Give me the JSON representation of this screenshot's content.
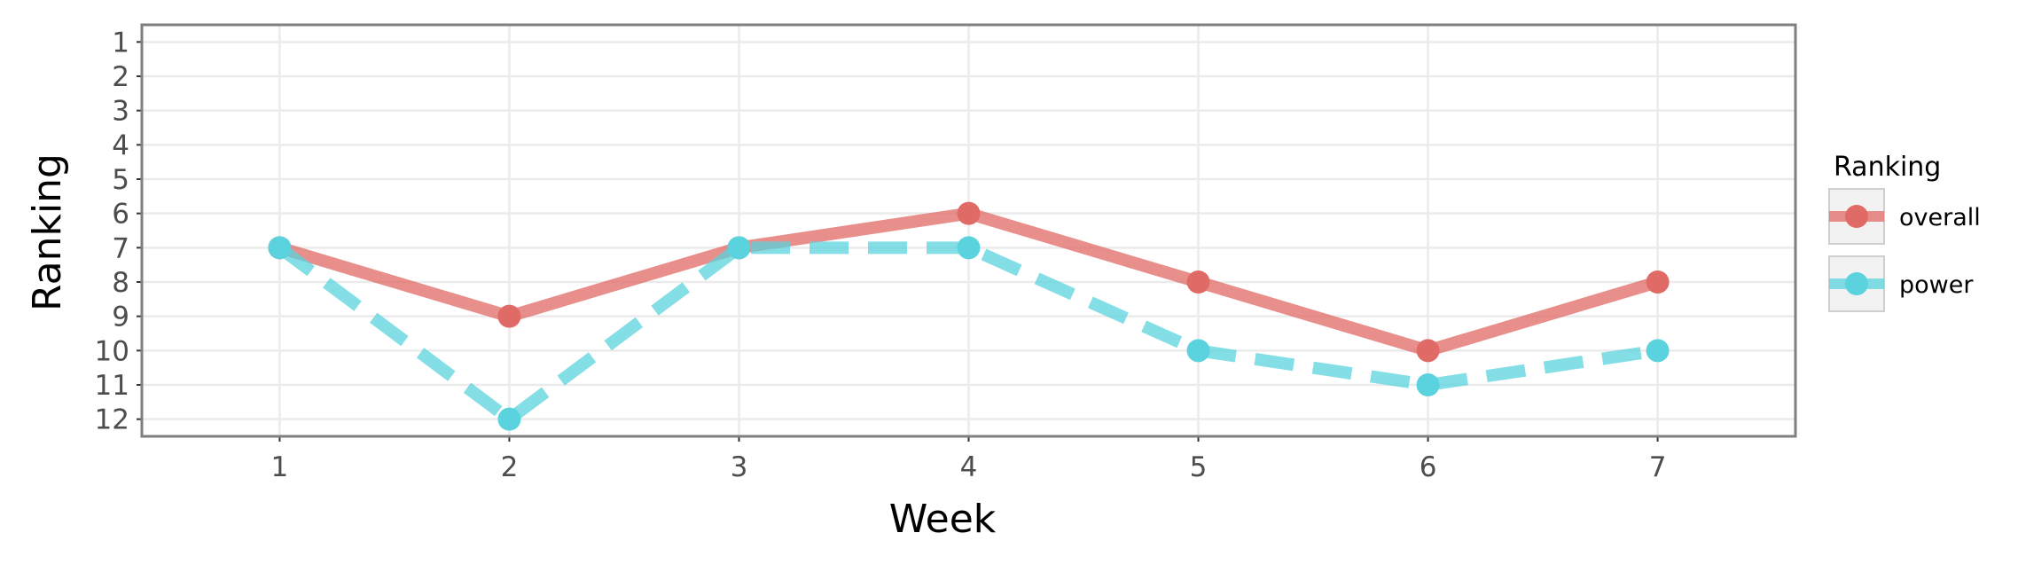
{
  "chart_data": {
    "type": "line",
    "xlabel": "Week",
    "ylabel": "Ranking",
    "x": [
      1,
      2,
      3,
      4,
      5,
      6,
      7
    ],
    "xlim": [
      0.4,
      7.6
    ],
    "ylim": [
      12.5,
      0.5
    ],
    "y_reversed": true,
    "xticks": [
      1,
      2,
      3,
      4,
      5,
      6,
      7
    ],
    "yticks": [
      1,
      2,
      3,
      4,
      5,
      6,
      7,
      8,
      9,
      10,
      11,
      12
    ],
    "grid": true,
    "legend": {
      "title": "Ranking",
      "position": "right"
    },
    "series": [
      {
        "name": "overall",
        "values": [
          7,
          9,
          7,
          6,
          8,
          10,
          8
        ],
        "color": "#e06a66",
        "linestyle": "solid"
      },
      {
        "name": "power",
        "values": [
          7,
          12,
          7,
          7,
          10,
          11,
          10
        ],
        "color": "#5bd3de",
        "linestyle": "dashed"
      }
    ]
  }
}
